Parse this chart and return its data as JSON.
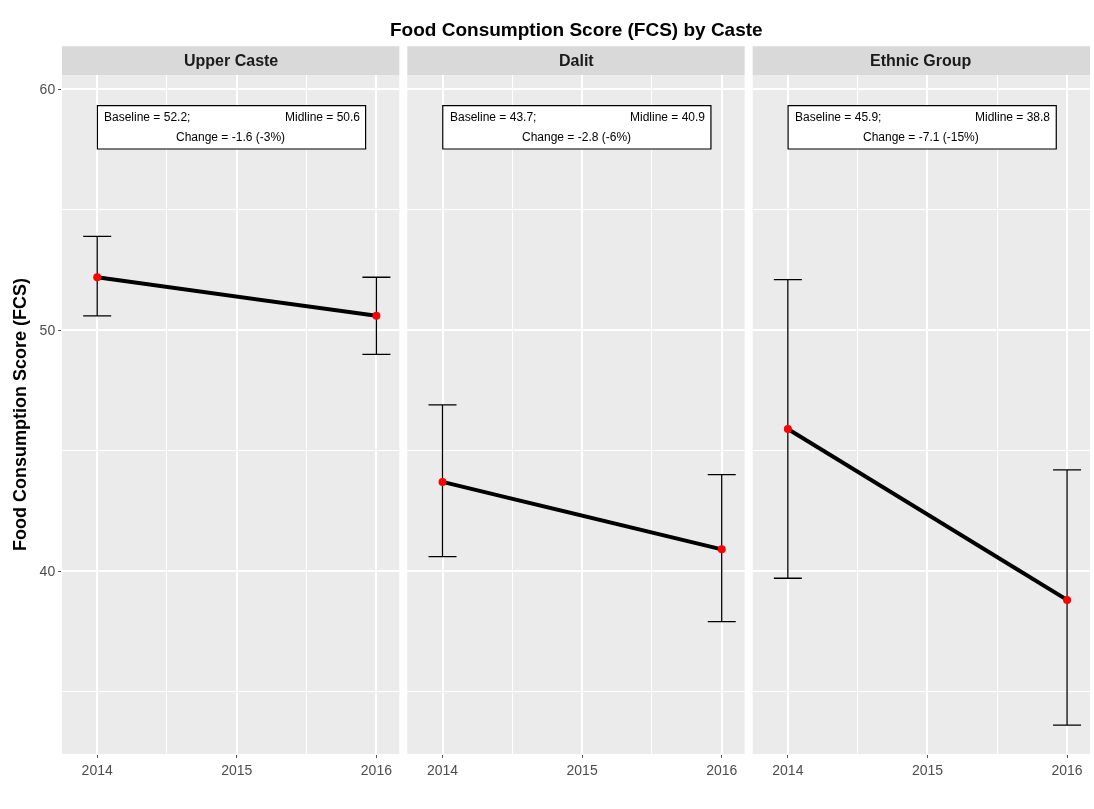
{
  "chart_data": [
    {
      "type": "line",
      "subtitle": "Upper Caste",
      "ylabel": "Food Consumption Score (FCS)",
      "x": [
        "2014",
        "2016"
      ],
      "xlim": [
        "2013-10",
        "2016-03"
      ],
      "xticks": [
        "2014",
        "2015",
        "2016"
      ],
      "ylim": [
        32.4,
        60.6
      ],
      "yticks": [
        40,
        50,
        60
      ],
      "grid": true,
      "marker": "circle",
      "series": [
        {
          "color": "#000000",
          "colors": [
            "#ff0000",
            "#ff0000"
          ],
          "values": [
            52.2,
            50.6
          ],
          "errors": [
            [
              50.6,
              53.9
            ],
            [
              49.0,
              52.2
            ]
          ]
        }
      ],
      "annotations": [
        "Baseline = 52.2;",
        "Midline = 50.6",
        "Change = -1.6 (-3%)"
      ]
    },
    {
      "type": "line",
      "title": "Food Consumption Score (FCS) by Caste",
      "subtitle": "Dalit",
      "x": [
        "2014",
        "2016"
      ],
      "xlim": [
        "2013-10",
        "2016-03"
      ],
      "xticks": [
        "2014",
        "2015",
        "2016"
      ],
      "ylim": [
        32.4,
        60.6
      ],
      "yticks": [
        40,
        50,
        60
      ],
      "grid": true,
      "marker": "circle",
      "tick_labels": "x",
      "series": [
        {
          "color": "#000000",
          "colors": [
            "#ff0000",
            "#ff0000"
          ],
          "values": [
            43.7,
            40.9
          ],
          "errors": [
            [
              40.6,
              46.9
            ],
            [
              37.9,
              44.0
            ]
          ]
        }
      ],
      "annotations": [
        "Baseline = 43.7;",
        "Midline = 40.9",
        "Change = -2.8 (-6%)"
      ]
    },
    {
      "type": "line",
      "subtitle": "Ethnic Group",
      "x": [
        "2014",
        "2016"
      ],
      "xlim": [
        "2013-10",
        "2016-03"
      ],
      "xticks": [
        "2014",
        "2015",
        "2016"
      ],
      "ylim": [
        32.4,
        60.6
      ],
      "yticks": [
        40,
        50,
        60
      ],
      "grid": true,
      "marker": "circle",
      "tick_labels": "x",
      "series": [
        {
          "color": "#000000",
          "colors": [
            "#ff0000",
            "#ff0000"
          ],
          "values": [
            45.9,
            38.8
          ],
          "errors": [
            [
              39.7,
              52.1
            ],
            [
              33.6,
              44.2
            ]
          ]
        }
      ],
      "annotations": [
        "Baseline = 45.9;",
        "Midline = 38.8",
        "Change = -7.1 (-15%)"
      ]
    }
  ]
}
